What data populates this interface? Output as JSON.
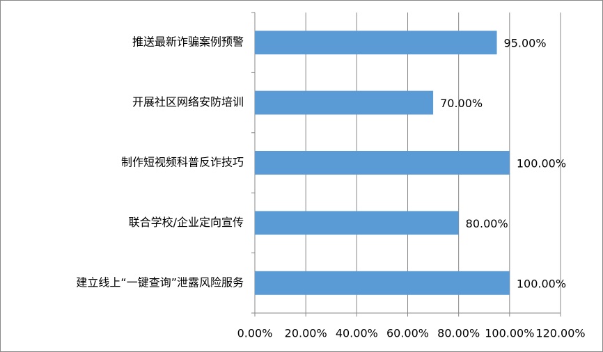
{
  "chart_data": {
    "type": "bar",
    "orientation": "horizontal",
    "categories": [
      "推送最新诈骗案例预警",
      "开展社区网络安防培训",
      "制作短视频科普反诈技巧",
      "联合学校/企业定向宣传",
      "建立线上“一键查询”泄露风险服务"
    ],
    "values": [
      95,
      70,
      100,
      80,
      100
    ],
    "value_labels": [
      "95.00%",
      "70.00%",
      "100.00%",
      "80.00%",
      "100.00%"
    ],
    "color": "#5b9bd5",
    "xlim": [
      0,
      120
    ],
    "xticks": [
      {
        "value": 0,
        "label": "0.00%"
      },
      {
        "value": 20,
        "label": "20.00%"
      },
      {
        "value": 40,
        "label": "40.00%"
      },
      {
        "value": 60,
        "label": "60.00%"
      },
      {
        "value": 80,
        "label": "80.00%"
      },
      {
        "value": 100,
        "label": "100.00%"
      },
      {
        "value": 120,
        "label": "120.00%"
      }
    ],
    "grid": true
  }
}
